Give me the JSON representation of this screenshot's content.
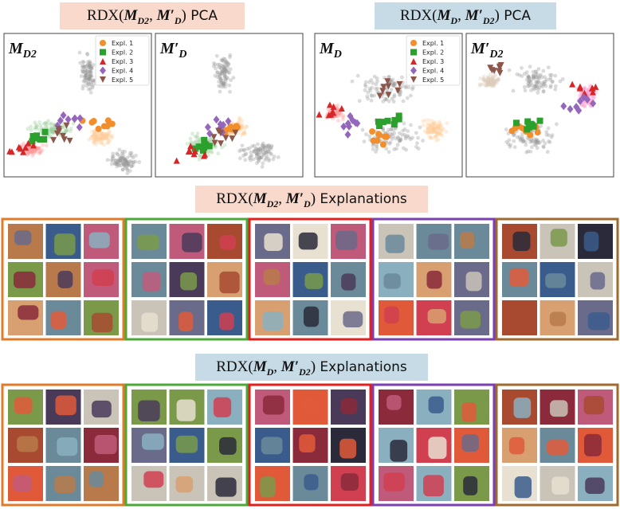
{
  "pca_titles": [
    {
      "parts": [
        "RDX(",
        "M",
        "D2",
        ", ",
        "M′",
        "D",
        ")",
        " PCA"
      ]
    },
    {
      "parts": [
        "RDX(",
        "M",
        "D",
        ", ",
        "M′",
        "D2",
        ")",
        " PCA"
      ]
    }
  ],
  "panels": [
    {
      "label": "M",
      "sub": "D2"
    },
    {
      "label": "M′",
      "sub": "D"
    },
    {
      "label": "M",
      "sub": "D"
    },
    {
      "label": "M′",
      "sub": "D2"
    }
  ],
  "legend": [
    "Expl. 1",
    "Expl. 2",
    "Expl. 3",
    "Expl. 4",
    "Expl. 5"
  ],
  "explanation_titles": [
    {
      "parts": [
        "RDX(",
        "M",
        "D2",
        ", ",
        "M′",
        "D",
        ")",
        " Explanations"
      ]
    },
    {
      "parts": [
        "RDX(",
        "M",
        "D",
        ", ",
        "M′",
        "D2",
        ")",
        " Explanations"
      ]
    }
  ]
}
